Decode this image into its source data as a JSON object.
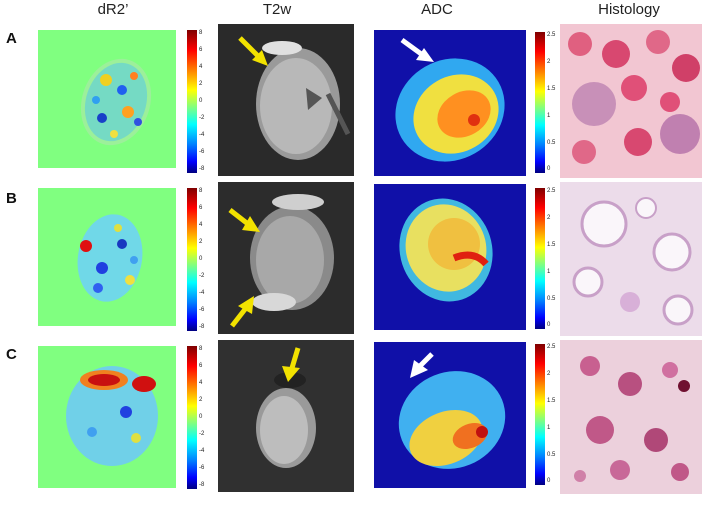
{
  "columns": [
    "dR2’",
    "T2w",
    "ADC",
    "Histology"
  ],
  "rows": [
    "A",
    "B",
    "C"
  ],
  "dr2_colorbar_ticks": [
    "8",
    "6",
    "4",
    "2",
    "0",
    "-2",
    "-4",
    "-6",
    "-8"
  ],
  "adc_colorbar_ticks": [
    "2.5",
    "2",
    "1.5",
    "1",
    "0.5",
    "0"
  ],
  "arrow_colors": {
    "t2w": "#f2e200",
    "adc": "#ffffff"
  }
}
